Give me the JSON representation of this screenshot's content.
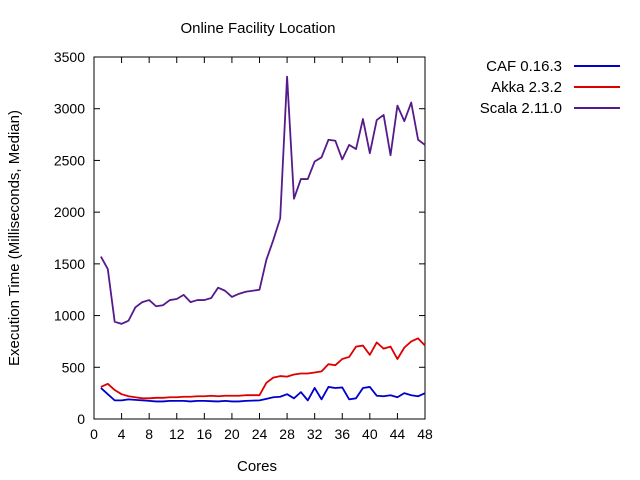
{
  "chart_data": {
    "type": "line",
    "title": "Online Facility Location",
    "xlabel": "Cores",
    "ylabel": "Execution Time (Milliseconds, Median)",
    "xlim": [
      0,
      48
    ],
    "ylim": [
      0,
      3500
    ],
    "xticks": [
      0,
      4,
      8,
      12,
      16,
      20,
      24,
      28,
      32,
      36,
      40,
      44,
      48
    ],
    "yticks": [
      0,
      500,
      1000,
      1500,
      2000,
      2500,
      3000,
      3500
    ],
    "grid": false,
    "legend_position": "top-right, outside plot",
    "x": [
      1,
      2,
      3,
      4,
      5,
      6,
      7,
      8,
      9,
      10,
      11,
      12,
      13,
      14,
      15,
      16,
      17,
      18,
      19,
      20,
      21,
      22,
      23,
      24,
      25,
      26,
      27,
      28,
      29,
      30,
      31,
      32,
      33,
      34,
      35,
      36,
      37,
      38,
      39,
      40,
      41,
      42,
      43,
      44,
      45,
      46,
      47,
      48
    ],
    "series": [
      {
        "name": "CAF 0.16.3",
        "color": "#0000cc",
        "values": [
          300,
          240,
          180,
          180,
          190,
          185,
          180,
          175,
          170,
          170,
          175,
          175,
          175,
          170,
          175,
          175,
          172,
          170,
          175,
          170,
          170,
          175,
          178,
          180,
          195,
          210,
          215,
          240,
          200,
          260,
          180,
          300,
          190,
          310,
          300,
          305,
          190,
          200,
          300,
          310,
          225,
          220,
          230,
          210,
          250,
          230,
          220,
          250
        ]
      },
      {
        "name": "Akka 2.3.2",
        "color": "#dd0000",
        "values": [
          310,
          340,
          280,
          240,
          220,
          210,
          200,
          200,
          205,
          205,
          210,
          210,
          215,
          215,
          220,
          220,
          225,
          220,
          225,
          225,
          225,
          230,
          230,
          230,
          350,
          400,
          415,
          410,
          430,
          440,
          440,
          450,
          460,
          530,
          520,
          580,
          600,
          700,
          710,
          620,
          740,
          680,
          700,
          580,
          690,
          750,
          780,
          710
        ]
      },
      {
        "name": "Scala 2.11.0",
        "color": "#551a8b",
        "values": [
          1570,
          1450,
          940,
          920,
          950,
          1080,
          1130,
          1150,
          1090,
          1100,
          1150,
          1160,
          1200,
          1130,
          1150,
          1150,
          1170,
          1270,
          1240,
          1180,
          1210,
          1230,
          1240,
          1250,
          1540,
          1730,
          1940,
          3310,
          2130,
          2320,
          2320,
          2490,
          2530,
          2700,
          2690,
          2510,
          2650,
          2610,
          2900,
          2570,
          2890,
          2940,
          2550,
          3030,
          2880,
          3060,
          2700,
          2650
        ]
      }
    ]
  }
}
